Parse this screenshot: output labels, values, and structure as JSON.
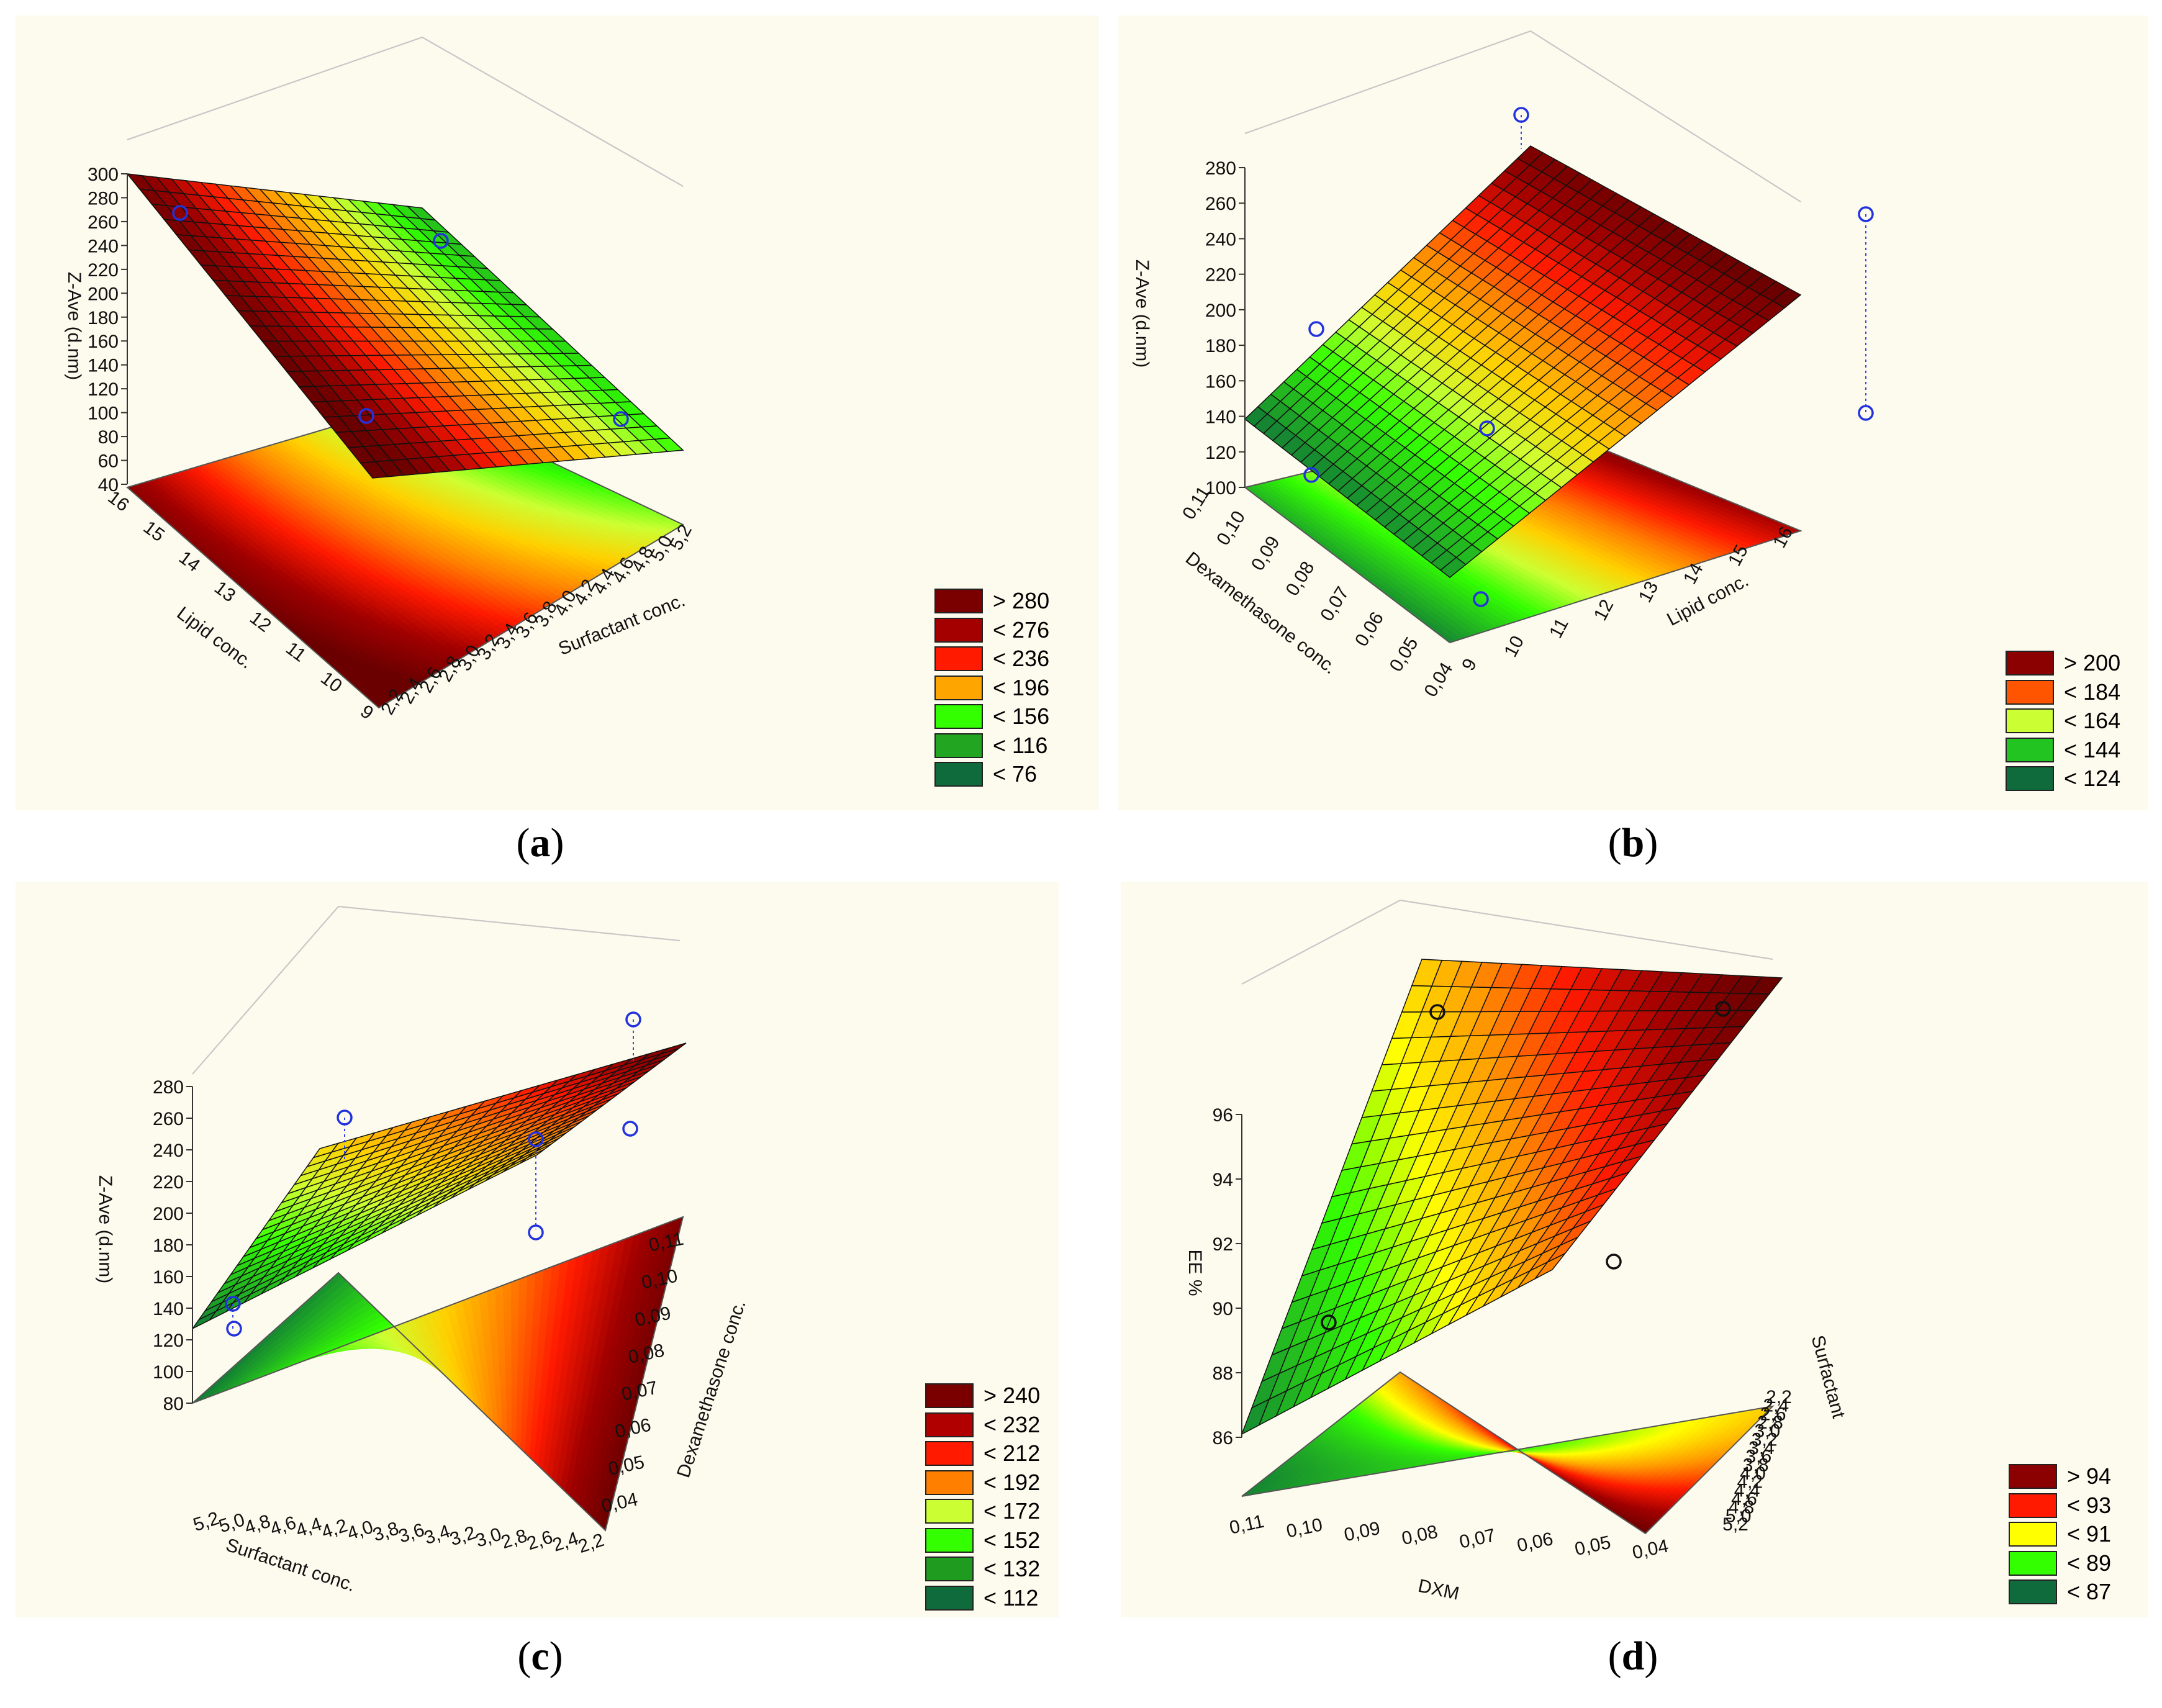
{
  "panels": [
    {
      "id": "a",
      "label": "a",
      "chart_data": {
        "type": "surface3d",
        "zlabel": "Z-Ave (d.nm)",
        "xlabel": "Surfactant conc.",
        "ylabel": "Lipid conc.",
        "zticks": [
          "300",
          "280",
          "260",
          "240",
          "220",
          "200",
          "180",
          "160",
          "140",
          "120",
          "100",
          "80",
          "60",
          "40"
        ],
        "xticks": [
          "5,2",
          "5,0",
          "4,8",
          "4,6",
          "4,4",
          "4,2",
          "4,0",
          "3,8",
          "3,6",
          "3,4",
          "3,2",
          "3,0",
          "2,8",
          "2,6",
          "2,4",
          "2,2"
        ],
        "yticks": [
          "16",
          "15",
          "14",
          "13",
          "12",
          "11",
          "10",
          "9"
        ],
        "zlim": [
          40,
          300
        ],
        "legend": [
          {
            "label": "> 280",
            "color": "#7a0000"
          },
          {
            "label": "< 276",
            "color": "#a50000"
          },
          {
            "label": "< 236",
            "color": "#ff1a00"
          },
          {
            "label": "< 196",
            "color": "#ffa500"
          },
          {
            "label": "< 156",
            "color": "#33ff00"
          },
          {
            "label": "< 116",
            "color": "#22a622"
          },
          {
            "label": "< 76",
            "color": "#0f6b3b"
          }
        ]
      }
    },
    {
      "id": "b",
      "label": "b",
      "chart_data": {
        "type": "surface3d",
        "zlabel": "Z-Ave (d.nm)",
        "xlabel": "Dexamethasone conc.",
        "ylabel": "Lipid conc.",
        "zticks": [
          "280",
          "260",
          "240",
          "220",
          "200",
          "180",
          "160",
          "140",
          "120",
          "100"
        ],
        "xticks": [
          "0,11",
          "0,10",
          "0,09",
          "0,08",
          "0,07",
          "0,06",
          "0,05",
          "0,04"
        ],
        "yticks": [
          "9",
          "10",
          "11",
          "12",
          "13",
          "14",
          "15",
          "16"
        ],
        "zlim": [
          100,
          280
        ],
        "legend": [
          {
            "label": "> 200",
            "color": "#8b0000"
          },
          {
            "label": "< 184",
            "color": "#ff5500"
          },
          {
            "label": "< 164",
            "color": "#ccff33"
          },
          {
            "label": "< 144",
            "color": "#22c422"
          },
          {
            "label": "< 124",
            "color": "#0f6b3b"
          }
        ]
      }
    },
    {
      "id": "c",
      "label": "c",
      "chart_data": {
        "type": "surface3d",
        "zlabel": "Z-Ave (d.nm)",
        "xlabel": "Surfactant conc.",
        "ylabel": "Dexamethasone conc.",
        "zticks": [
          "280",
          "260",
          "240",
          "220",
          "200",
          "180",
          "160",
          "140",
          "120",
          "100",
          "80"
        ],
        "xticks": [
          "5,2",
          "5,0",
          "4,8",
          "4,6",
          "4,4",
          "4,2",
          "4,0",
          "3,8",
          "3,6",
          "3,4",
          "3,2",
          "3,0",
          "2,8",
          "2,6",
          "2,4",
          "2,2"
        ],
        "yticks": [
          "0,04",
          "0,05",
          "0,06",
          "0,07",
          "0,08",
          "0,09",
          "0,10",
          "0,11"
        ],
        "zlim": [
          80,
          280
        ],
        "legend": [
          {
            "label": "> 240",
            "color": "#7a0000"
          },
          {
            "label": "< 232",
            "color": "#b00000"
          },
          {
            "label": "< 212",
            "color": "#ff1a00"
          },
          {
            "label": "< 192",
            "color": "#ff7f00"
          },
          {
            "label": "< 172",
            "color": "#ccff33"
          },
          {
            "label": "< 152",
            "color": "#33ff00"
          },
          {
            "label": "< 132",
            "color": "#1f9c1f"
          },
          {
            "label": "< 112",
            "color": "#0f6b3b"
          }
        ]
      }
    },
    {
      "id": "d",
      "label": "d",
      "chart_data": {
        "type": "surface3d",
        "zlabel": "EE %",
        "xlabel": "DXM",
        "ylabel": "Surfactant",
        "zticks": [
          "96",
          "94",
          "92",
          "90",
          "88",
          "86"
        ],
        "xticks": [
          "0,11",
          "0,10",
          "0,09",
          "0,08",
          "0,07",
          "0,06",
          "0,05",
          "0,04"
        ],
        "yticks": [
          "2,2",
          "2,4",
          "2,6",
          "2,8",
          "3,0",
          "3,2",
          "3,4",
          "3,6",
          "3,8",
          "4,0",
          "4,2",
          "4,4",
          "4,6",
          "4,8",
          "5,0",
          "5,2"
        ],
        "zlim": [
          86,
          96
        ],
        "legend": [
          {
            "label": "> 94",
            "color": "#8b0000"
          },
          {
            "label": "< 93",
            "color": "#ff1a00"
          },
          {
            "label": "< 91",
            "color": "#ffff00"
          },
          {
            "label": "< 89",
            "color": "#33ff00"
          },
          {
            "label": "< 87",
            "color": "#0f6b3b"
          }
        ]
      }
    }
  ]
}
